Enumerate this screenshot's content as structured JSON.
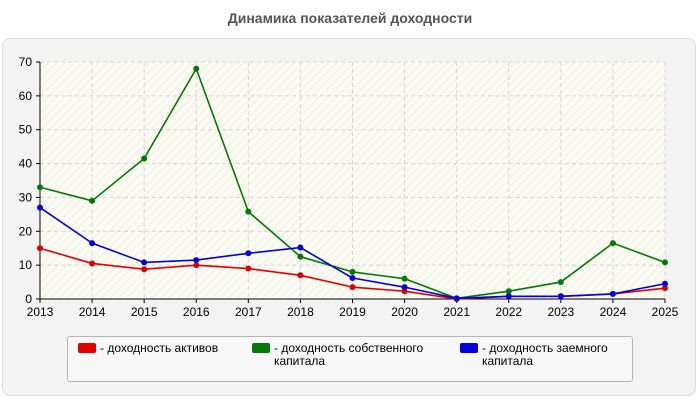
{
  "chart_data": {
    "type": "line",
    "title": "Динамика показателей доходности",
    "x": [
      "2013",
      "2014",
      "2015",
      "2016",
      "2017",
      "2018",
      "2019",
      "2020",
      "2021",
      "2022",
      "2023",
      "2024",
      "2025"
    ],
    "ylim": [
      0,
      70
    ],
    "yticks": [
      0,
      10,
      20,
      30,
      40,
      50,
      60,
      70
    ],
    "grid": true,
    "legend_position": "bottom",
    "series": [
      {
        "name": "- доходность активов",
        "color": "#e00000",
        "values": [
          15.0,
          10.5,
          8.8,
          10.0,
          9.0,
          7.0,
          3.5,
          2.3,
          0.0,
          0.8,
          0.8,
          1.5,
          3.2
        ]
      },
      {
        "name": "- доходность собственного капитала",
        "color": "#007a00",
        "values": [
          33.0,
          29.0,
          41.5,
          68.0,
          25.8,
          12.5,
          8.0,
          6.0,
          0.2,
          2.3,
          5.0,
          16.5,
          10.8
        ]
      },
      {
        "name": "- доходность заемного капитала",
        "color": "#0000e0",
        "values": [
          27.0,
          16.5,
          10.8,
          11.5,
          13.5,
          15.2,
          6.2,
          3.5,
          0.2,
          0.8,
          0.8,
          1.5,
          4.5
        ]
      }
    ]
  }
}
